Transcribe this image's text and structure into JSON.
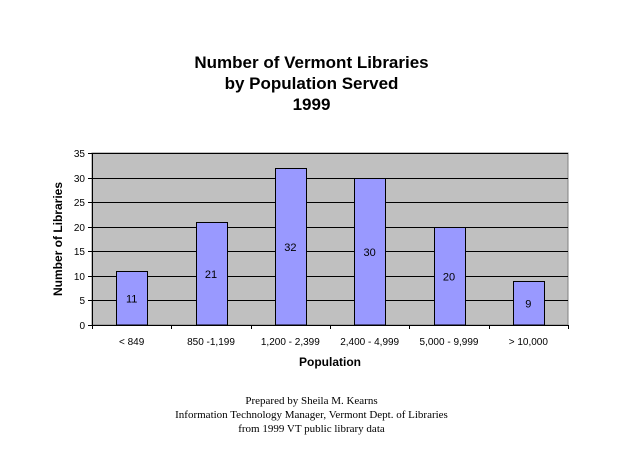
{
  "chart_data": {
    "type": "bar",
    "title_lines": [
      "Number of Vermont Libraries",
      "by Population Served",
      "1999"
    ],
    "xlabel": "Population",
    "ylabel": "Number of Libraries",
    "categories": [
      "< 849",
      "850 -1,199",
      "1,200 - 2,399",
      "2,400 - 4,999",
      "5,000 - 9,999",
      "> 10,000"
    ],
    "values": [
      11,
      21,
      32,
      30,
      20,
      9
    ],
    "ylim": [
      0,
      35
    ],
    "yticks": [
      0,
      5,
      10,
      15,
      20,
      25,
      30,
      35
    ],
    "grid": true,
    "bar_color": "#9999ff",
    "plot_background": "#c0c0c0"
  },
  "footer": {
    "lines": [
      "Prepared by Sheila M. Kearns",
      "Information Technology Manager, Vermont Dept. of Libraries",
      "from 1999 VT public library data"
    ]
  }
}
